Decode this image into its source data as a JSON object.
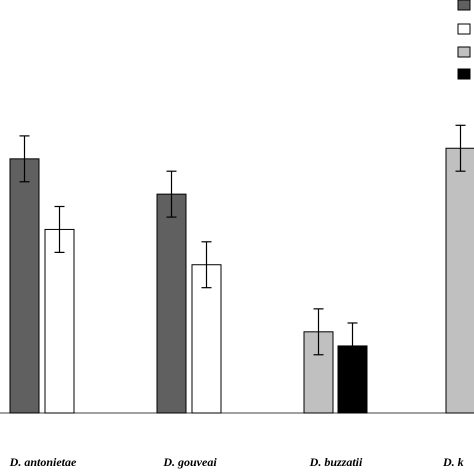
{
  "chart_data": {
    "type": "bar",
    "categories": [
      "D. antonietae",
      "D. gouveai",
      "D. buzzatii",
      "D. k"
    ],
    "series": [
      {
        "color": "#606060",
        "values": [
          72,
          62,
          null,
          null
        ],
        "errors": [
          6.5,
          6.5,
          null,
          null
        ]
      },
      {
        "color": "#ffffff",
        "values": [
          52,
          42,
          null,
          null
        ],
        "errors": [
          6.5,
          6.5,
          null,
          null
        ]
      },
      {
        "color": "#c0c0c0",
        "values": [
          null,
          null,
          23,
          75
        ],
        "errors": [
          null,
          null,
          6.5,
          6.5
        ]
      },
      {
        "color": "#000000",
        "values": [
          null,
          null,
          19,
          null
        ],
        "errors": [
          null,
          null,
          6.5,
          null
        ]
      }
    ],
    "ylim": [
      0,
      100
    ],
    "grid": false,
    "legend": "top-right"
  }
}
